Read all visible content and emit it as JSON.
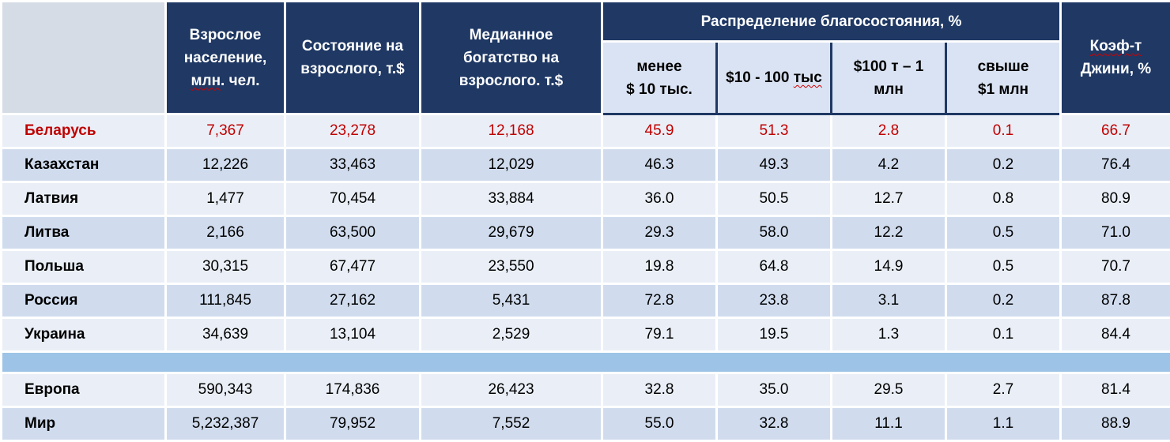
{
  "header": {
    "col1": {
      "line1": "Взрослое",
      "line2": "население,",
      "line3_pre": "",
      "line3_u": "млн",
      "line3_post": ". чел."
    },
    "col2": {
      "line1": "Состояние на",
      "line2": "взрослого, т.$"
    },
    "col3": {
      "line1": "Медианное",
      "line2": "богатство на",
      "line3": "взрослого. т.$"
    },
    "group": "Распределение благосостояния, %",
    "sub1": {
      "line1": "менее",
      "line2": "$ 10 тыс."
    },
    "sub2": {
      "pre": "$10 - 100 ",
      "u": "тыс"
    },
    "sub3": {
      "line1": "$100 т – 1",
      "line2": "млн"
    },
    "sub4": {
      "line1": "свыше",
      "line2": "$1 млн"
    },
    "col9": {
      "line1_u": "Коэф-т",
      "line2": "Джини, %"
    }
  },
  "rows": [
    {
      "country": "Беларусь",
      "pop": "7,367",
      "wealth": "23,278",
      "median": "12,168",
      "d1": "45.9",
      "d2": "51.3",
      "d3": "2.8",
      "d4": "0.1",
      "gini": "66.7"
    },
    {
      "country": "Казахстан",
      "pop": "12,226",
      "wealth": "33,463",
      "median": "12,029",
      "d1": "46.3",
      "d2": "49.3",
      "d3": "4.2",
      "d4": "0.2",
      "gini": "76.4"
    },
    {
      "country": "Латвия",
      "pop": "1,477",
      "wealth": "70,454",
      "median": "33,884",
      "d1": "36.0",
      "d2": "50.5",
      "d3": "12.7",
      "d4": "0.8",
      "gini": "80.9"
    },
    {
      "country": "Литва",
      "pop": "2,166",
      "wealth": "63,500",
      "median": "29,679",
      "d1": "29.3",
      "d2": "58.0",
      "d3": "12.2",
      "d4": "0.5",
      "gini": "71.0"
    },
    {
      "country": "Польша",
      "pop": "30,315",
      "wealth": "67,477",
      "median": "23,550",
      "d1": "19.8",
      "d2": "64.8",
      "d3": "14.9",
      "d4": "0.5",
      "gini": "70.7"
    },
    {
      "country": "Россия",
      "pop": "111,845",
      "wealth": "27,162",
      "median": "5,431",
      "d1": "72.8",
      "d2": "23.8",
      "d3": "3.1",
      "d4": "0.2",
      "gini": "87.8"
    },
    {
      "country": "Украина",
      "pop": "34,639",
      "wealth": "13,104",
      "median": "2,529",
      "d1": "79.1",
      "d2": "19.5",
      "d3": "1.3",
      "d4": "0.1",
      "gini": "84.4"
    }
  ],
  "totals": [
    {
      "country": "Европа",
      "pop": "590,343",
      "wealth": "174,836",
      "median": "26,423",
      "d1": "32.8",
      "d2": "35.0",
      "d3": "29.5",
      "d4": "2.7",
      "gini": "81.4"
    },
    {
      "country": "Мир",
      "pop": "5,232,387",
      "wealth": "79,952",
      "median": "7,552",
      "d1": "55.0",
      "d2": "32.8",
      "d3": "11.1",
      "d4": "1.1",
      "gini": "88.9"
    }
  ],
  "colors": {
    "header_bg": "#1f3864",
    "highlight_text": "#c00000",
    "spacer": "#9dc3e6"
  }
}
